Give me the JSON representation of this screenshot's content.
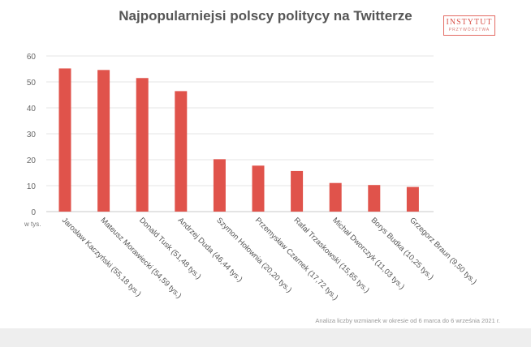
{
  "chart_data": {
    "type": "bar",
    "title": "Najpopularniejsi polscy politycy na Twitterze",
    "unit_label": "w tys.",
    "ylim": [
      0,
      60
    ],
    "yticks": [
      0,
      10,
      20,
      30,
      40,
      50,
      60
    ],
    "grid": true,
    "bar_color": "#e0534b",
    "categories": [
      "Jarosław Kaczyński (55,18 tys.)",
      "Mateusz Morawiecki (54,59 tys.)",
      "Donald Tusk (51,48 tys.)",
      "Andrzej Duda (46,44 tys.)",
      "Szymon Hołownia (20,20 tys.)",
      "Przemysław Czarnek (17,72 tys.)",
      "Rafał Trzaskowski (15,65 tys.)",
      "Michał Dworczyk (11,03 tys.)",
      "Borys Budka (10,25 tys.)",
      "Grzegorz Braun (9,50 tys.)"
    ],
    "values": [
      55.18,
      54.59,
      51.48,
      46.44,
      20.2,
      17.72,
      15.65,
      11.03,
      10.25,
      9.5
    ]
  },
  "logo": {
    "main": "INSTYTUT",
    "sub": "PRZYWÓDZTWA"
  },
  "footnote": "Analiza liczby wzmianek w okresie od 6 marca do 6 września 2021 r."
}
